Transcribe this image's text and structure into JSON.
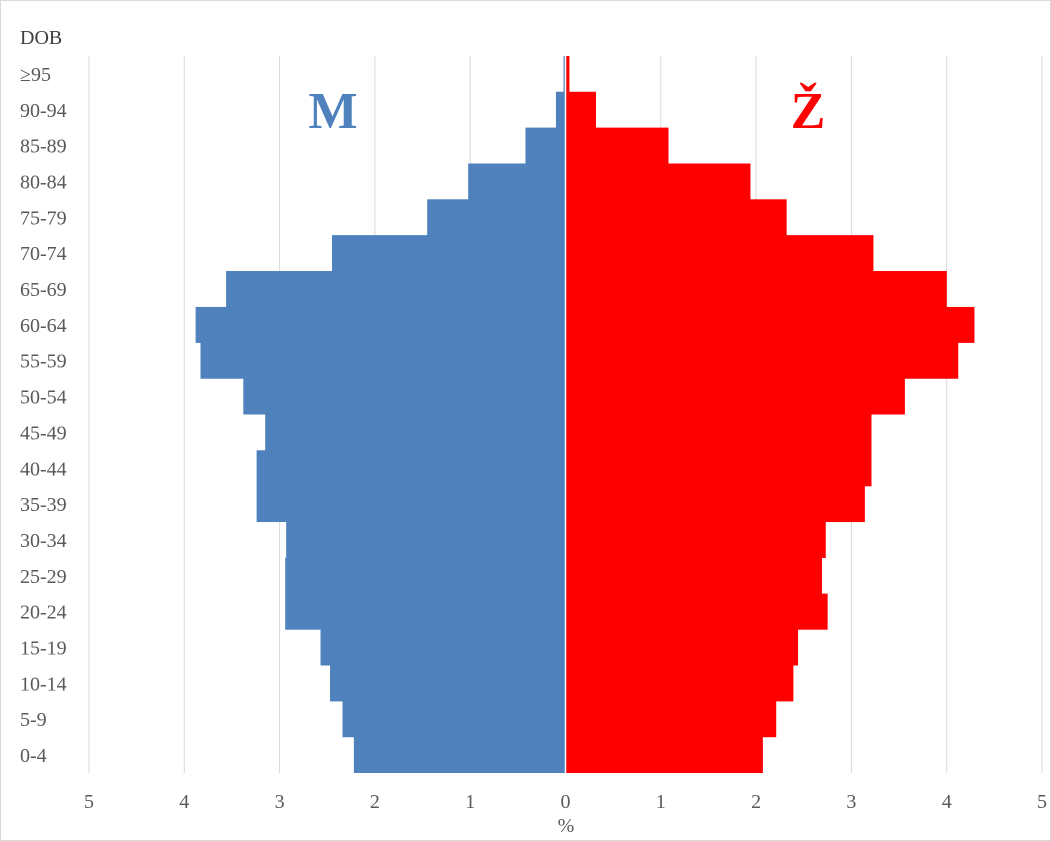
{
  "chart_data": {
    "type": "bar",
    "orientation": "horizontal",
    "layout": "population-pyramid",
    "ylabel": "DOB",
    "xlabel": "%",
    "xlim": [
      -5,
      5
    ],
    "x_ticks": [
      -5,
      -4,
      -3,
      -2,
      -1,
      0,
      1,
      2,
      3,
      4,
      5
    ],
    "x_tick_labels": [
      "5",
      "4",
      "3",
      "2",
      "1",
      "0",
      "1",
      "2",
      "3",
      "4",
      "5"
    ],
    "grid": true,
    "categories": [
      "0-4",
      "5-9",
      "10-14",
      "15-19",
      "20-24",
      "25-29",
      "30-34",
      "35-39",
      "40-44",
      "45-49",
      "50-54",
      "55-59",
      "60-64",
      "65-69",
      "70-74",
      "75-79",
      "80-84",
      "85-89",
      "90-94",
      "≥95"
    ],
    "series": [
      {
        "name": "M",
        "color": "#4f81bd",
        "side": "left",
        "values": [
          2.22,
          2.34,
          2.47,
          2.57,
          2.94,
          2.94,
          2.93,
          3.24,
          3.24,
          3.15,
          3.38,
          3.83,
          3.88,
          3.56,
          2.45,
          1.45,
          1.02,
          0.42,
          0.1,
          0.02
        ]
      },
      {
        "name": "Ž",
        "color": "#ff0000",
        "side": "right",
        "values": [
          2.07,
          2.21,
          2.39,
          2.44,
          2.75,
          2.69,
          2.73,
          3.14,
          3.21,
          3.21,
          3.56,
          4.12,
          4.29,
          4.0,
          3.23,
          2.32,
          1.94,
          1.08,
          0.32,
          0.04
        ]
      }
    ],
    "annotations": [
      {
        "text": "M",
        "color": "#4f81bd",
        "near": "upper-left"
      },
      {
        "text": "Ž",
        "color": "#ff0000",
        "near": "upper-right"
      }
    ]
  }
}
